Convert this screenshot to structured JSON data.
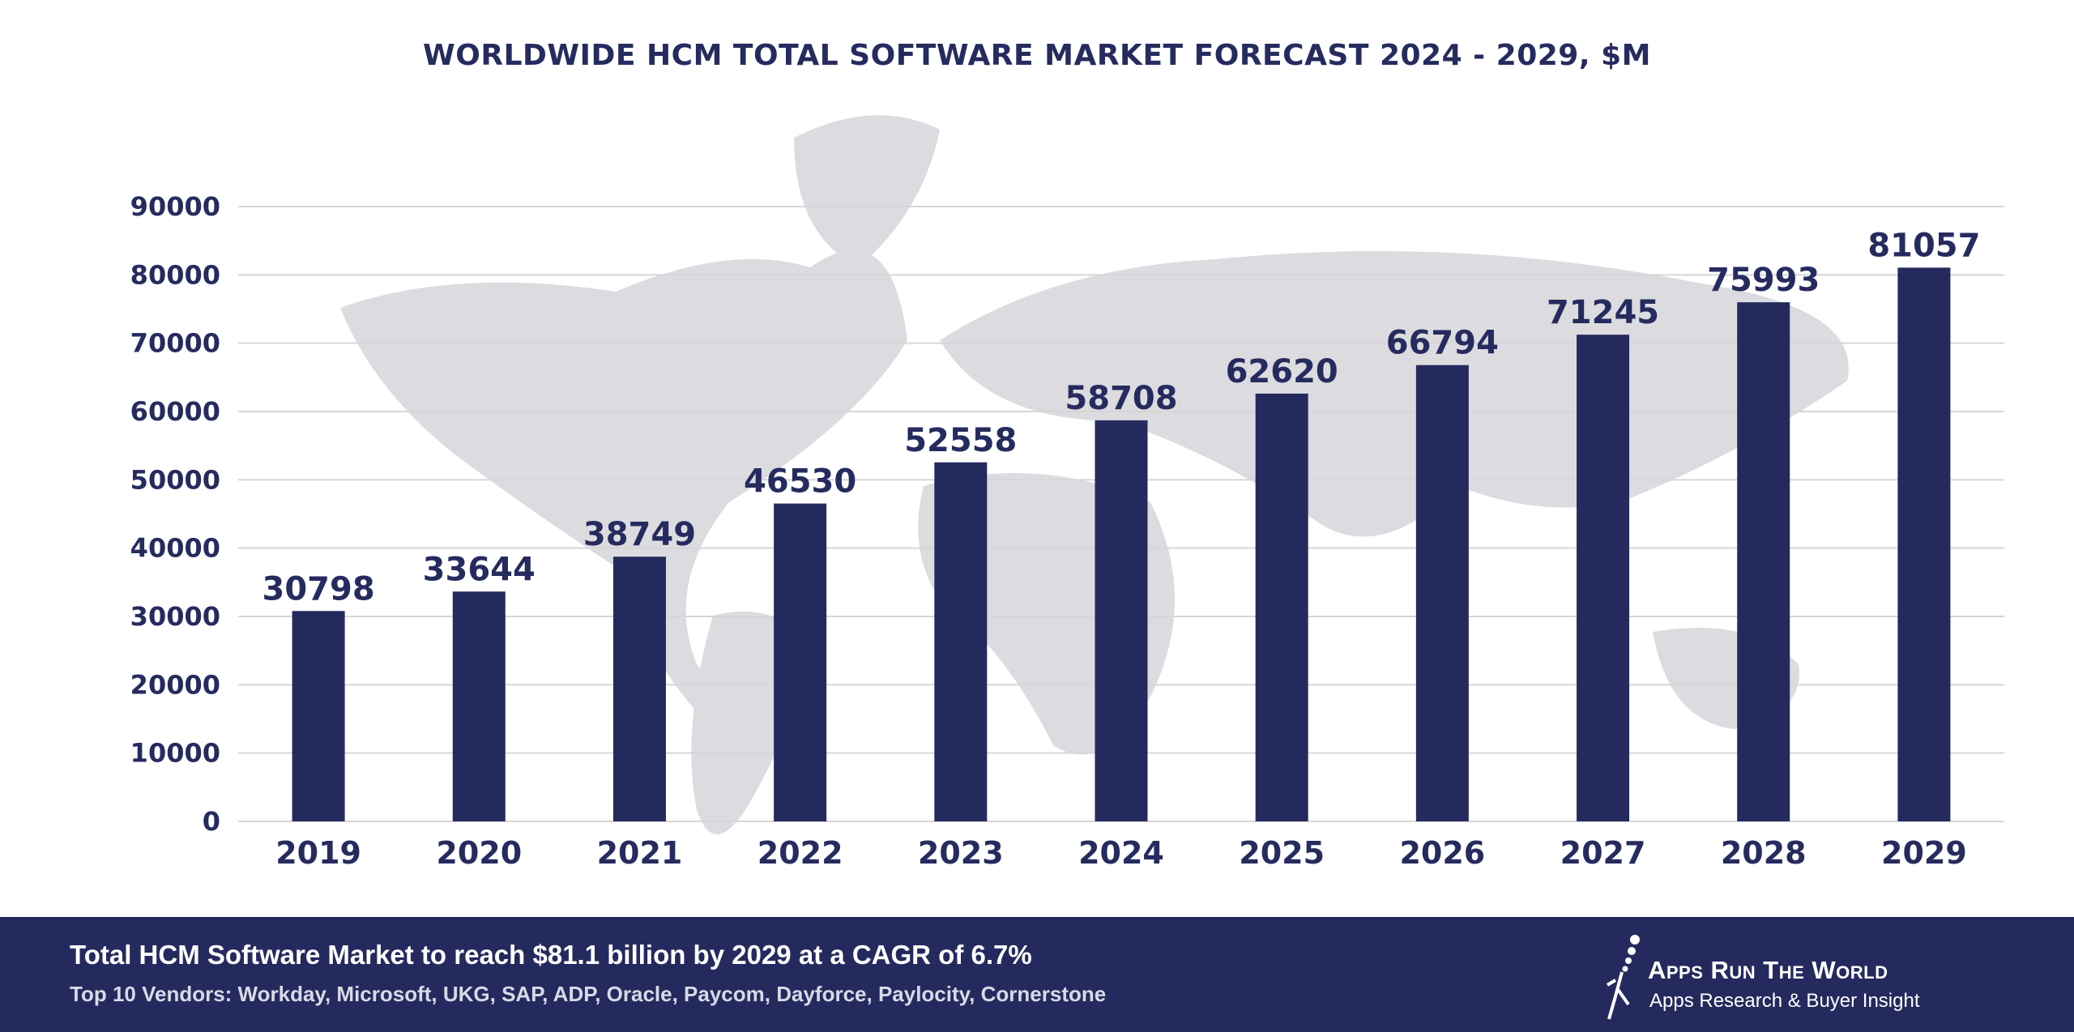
{
  "chart_data": {
    "type": "bar",
    "title": "WORLDWIDE HCM TOTAL SOFTWARE MARKET FORECAST 2024 - 2029, $M",
    "categories": [
      "2019",
      "2020",
      "2021",
      "2022",
      "2023",
      "2024",
      "2025",
      "2026",
      "2027",
      "2028",
      "2029"
    ],
    "values": [
      30798,
      33644,
      38749,
      46530,
      52558,
      58708,
      62620,
      66794,
      71245,
      75993,
      81057
    ],
    "yticks": [
      0,
      10000,
      20000,
      30000,
      40000,
      50000,
      60000,
      70000,
      80000,
      90000
    ],
    "ylim": [
      0,
      90000
    ],
    "xlabel": "",
    "ylabel": "",
    "grid": true,
    "data_labels": true,
    "bar_color": "#252a5e",
    "text_color": "#262b5f",
    "background": "world map, light gray"
  },
  "footer": {
    "headline": "Total HCM Software Market to reach $81.1 billion by 2029 at a CAGR of 6.7%",
    "vendors": "Top 10 Vendors: Workday, Microsoft, UKG, SAP, ADP, Oracle, Paycom, Dayforce, Paylocity, Cornerstone",
    "background_color": "#252a5e",
    "logo": {
      "name": "Apps Run The World",
      "tagline": "Apps Research & Buyer Insight"
    }
  }
}
